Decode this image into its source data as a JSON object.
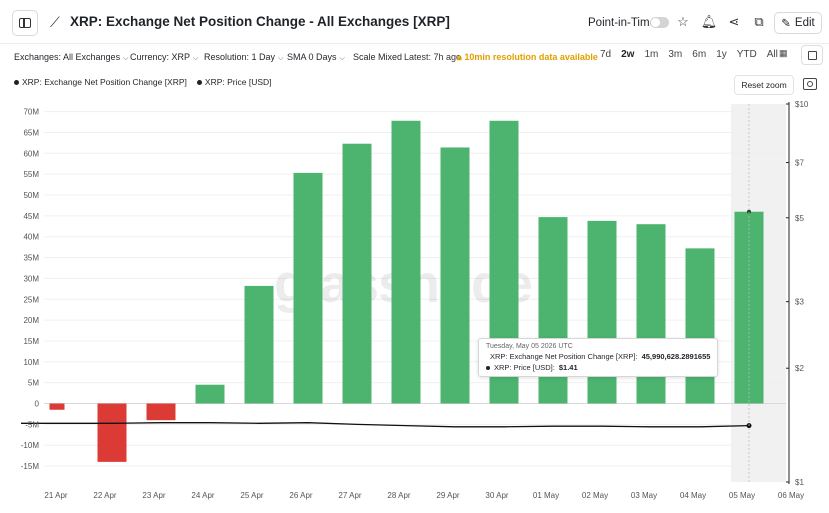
{
  "header": {
    "title": "XRP: Exchange Net Position Change - All Exchanges [XRP]",
    "point_in_time_label": "Point-in-Time",
    "edit_label": "Edit"
  },
  "toolbar": {
    "exchanges": "Exchanges: All Exchanges",
    "currency": "Currency: XRP",
    "resolution": "Resolution: 1 Day",
    "sma": "SMA 0 Days",
    "scale": "Scale Mixed",
    "latest": "Latest: 7h ago",
    "warning": "10min resolution data available",
    "ranges": [
      "7d",
      "2w",
      "1m",
      "3m",
      "6m",
      "1y",
      "YTD",
      "All"
    ],
    "active_range": "2w"
  },
  "legend": {
    "series1": "XRP: Exchange Net Position Change [XRP]",
    "series2": "XRP: Price [USD]"
  },
  "reset_zoom_label": "Reset zoom",
  "watermark": "glassnode",
  "tooltip": {
    "date": "Tuesday, May 05 2026 UTC",
    "row1_label": "XRP: Exchange Net Position Change [XRP]:",
    "row1_value": "45,990,628.2891655",
    "row2_label": "XRP: Price [USD]:",
    "row2_value": "$1.41"
  },
  "colors": {
    "positive": "#4cb46f",
    "negative": "#dc3b35",
    "price_line": "#111111",
    "highlight_band": "#ececec"
  },
  "chart_data": {
    "type": "bar",
    "categories": [
      "21 Apr",
      "22 Apr",
      "23 Apr",
      "24 Apr",
      "25 Apr",
      "26 Apr",
      "27 Apr",
      "28 Apr",
      "29 Apr",
      "30 Apr",
      "01 May",
      "02 May",
      "03 May",
      "04 May",
      "05 May",
      "06 May"
    ],
    "series": [
      {
        "name": "XRP: Exchange Net Position Change [XRP]",
        "axis": "left",
        "values": [
          -1500000,
          -14000000,
          -4000000,
          4500000,
          28200000,
          55300000,
          62300000,
          67800000,
          61400000,
          67800000,
          44700000,
          43800000,
          43000000,
          37200000,
          45990628.2891655,
          null
        ]
      },
      {
        "name": "XRP: Price [USD]",
        "axis": "right",
        "type": "line",
        "values": [
          1.43,
          1.43,
          1.435,
          1.435,
          1.43,
          1.435,
          1.42,
          1.41,
          1.4,
          1.4,
          1.405,
          1.405,
          1.4,
          1.4,
          1.41,
          null
        ]
      }
    ],
    "y_left": {
      "min": -15000000,
      "max": 70000000,
      "ticks": [
        -15000000,
        -10000000,
        -5000000,
        0,
        5000000,
        10000000,
        15000000,
        20000000,
        25000000,
        30000000,
        35000000,
        40000000,
        45000000,
        50000000,
        55000000,
        60000000,
        65000000,
        70000000
      ],
      "tick_labels": [
        "-15M",
        "-10M",
        "-5M",
        "0",
        "5M",
        "10M",
        "15M",
        "20M",
        "25M",
        "30M",
        "35M",
        "40M",
        "45M",
        "50M",
        "55M",
        "60M",
        "65M",
        "70M"
      ]
    },
    "y_right": {
      "scale": "log",
      "ticks": [
        1,
        2,
        3,
        5,
        7,
        10
      ],
      "tick_labels": [
        "$1",
        "$2",
        "$3",
        "$5",
        "$7",
        "$10"
      ]
    },
    "legend_position": "top-left",
    "grid": "horizontal"
  }
}
